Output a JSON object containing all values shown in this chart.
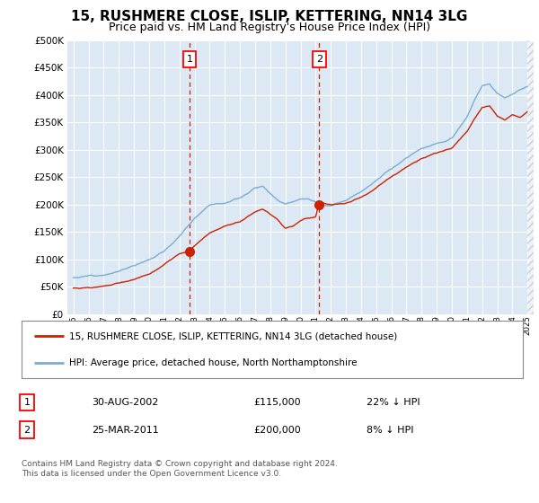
{
  "title": "15, RUSHMERE CLOSE, ISLIP, KETTERING, NN14 3LG",
  "subtitle": "Price paid vs. HM Land Registry's House Price Index (HPI)",
  "legend_line1": "15, RUSHMERE CLOSE, ISLIP, KETTERING, NN14 3LG (detached house)",
  "legend_line2": "HPI: Average price, detached house, North Northamptonshire",
  "footnote": "Contains HM Land Registry data © Crown copyright and database right 2024.\nThis data is licensed under the Open Government Licence v3.0.",
  "sale1_label": "1",
  "sale1_date": "30-AUG-2002",
  "sale1_price": "£115,000",
  "sale1_hpi": "22% ↓ HPI",
  "sale2_label": "2",
  "sale2_date": "25-MAR-2011",
  "sale2_price": "£200,000",
  "sale2_hpi": "8% ↓ HPI",
  "sale1_year": 2002.67,
  "sale1_value": 115000,
  "sale2_year": 2011.23,
  "sale2_value": 200000,
  "hpi_color": "#7aadd4",
  "price_color": "#cc2200",
  "ylim": [
    0,
    500000
  ],
  "yticks": [
    0,
    50000,
    100000,
    150000,
    200000,
    250000,
    300000,
    350000,
    400000,
    450000,
    500000
  ],
  "plot_bg_color": "#dce8f3",
  "grid_color": "#ffffff",
  "title_fontsize": 11,
  "subtitle_fontsize": 9
}
